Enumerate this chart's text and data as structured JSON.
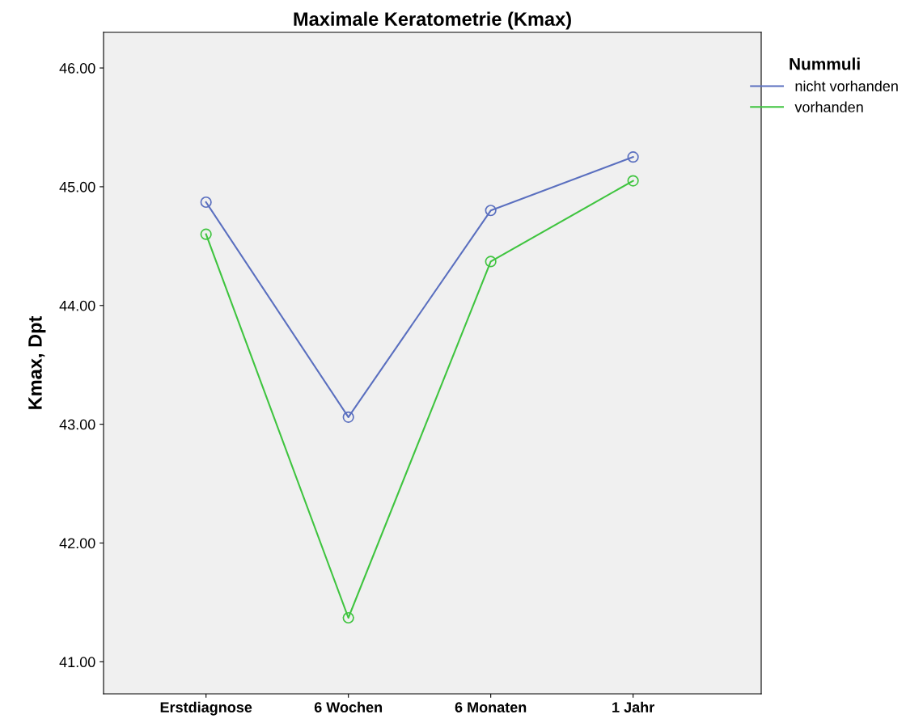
{
  "chart_data": {
    "type": "line",
    "title": "Maximale Keratometrie (Kmax)",
    "ylabel": "Kmax, Dpt",
    "legend_title": "Nummuli",
    "categories": [
      "Erstdiagnose",
      "6 Wochen",
      "6 Monaten",
      "1 Jahr"
    ],
    "series": [
      {
        "name": "nicht vorhanden",
        "color": "#5a6fbf",
        "values": [
          44.87,
          43.06,
          44.8,
          45.25
        ]
      },
      {
        "name": "vorhanden",
        "color": "#3fc43f",
        "values": [
          44.6,
          41.37,
          44.37,
          45.05
        ]
      }
    ],
    "ylim": [
      40.73,
      46.3
    ],
    "yticks": [
      {
        "value": 41,
        "label": "41.00"
      },
      {
        "value": 42,
        "label": "42.00"
      },
      {
        "value": 43,
        "label": "43.00"
      },
      {
        "value": 44,
        "label": "44.00"
      },
      {
        "value": 45,
        "label": "45.00"
      },
      {
        "value": 46,
        "label": "46.00"
      }
    ],
    "grid": false,
    "legend": "top right",
    "marker": "circle",
    "line_style": "solid"
  }
}
